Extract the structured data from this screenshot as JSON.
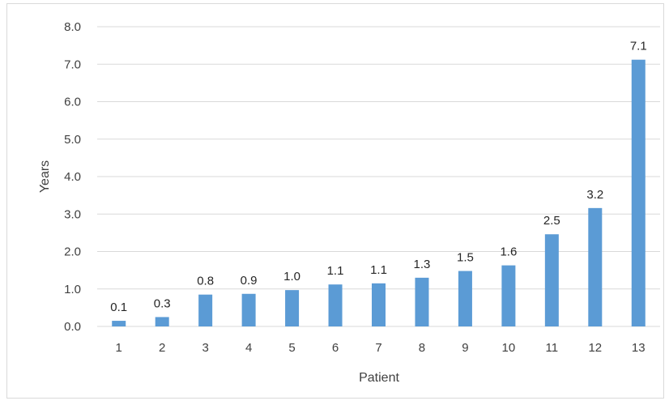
{
  "chart_data": {
    "type": "bar",
    "categories": [
      "1",
      "2",
      "3",
      "4",
      "5",
      "6",
      "7",
      "8",
      "9",
      "10",
      "11",
      "12",
      "13"
    ],
    "values": [
      0.15,
      0.25,
      0.85,
      0.87,
      0.97,
      1.12,
      1.15,
      1.3,
      1.48,
      1.63,
      2.46,
      3.16,
      7.12
    ],
    "data_labels": [
      "0.1",
      "0.3",
      "0.8",
      "0.9",
      "1.0",
      "1.1",
      "1.1",
      "1.3",
      "1.5",
      "1.6",
      "2.5",
      "3.2",
      "7.1"
    ],
    "y_ticks": [
      "0.0",
      "1.0",
      "2.0",
      "3.0",
      "4.0",
      "5.0",
      "6.0",
      "7.0",
      "8.0"
    ],
    "xlabel": "Patient",
    "ylabel": "Years",
    "ylim": [
      0,
      8
    ],
    "grid": true,
    "legend": "none",
    "bar_color": "#5b9bd5"
  }
}
